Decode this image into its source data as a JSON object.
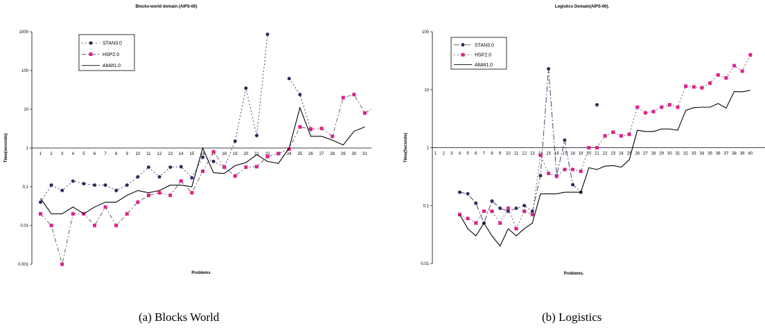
{
  "captions": [
    "(a) Blocks World",
    "(b) Logistics"
  ],
  "chart_data": [
    {
      "type": "line",
      "title": "Blocks-world domain (AIPS-00)",
      "xlabel": "Problems",
      "ylabel": "Time(seconds)",
      "yscale": "log",
      "ylim": [
        0.001,
        1000
      ],
      "yticks": [
        "0.001",
        "0.01",
        "0.1",
        "1",
        "10",
        "100",
        "1000"
      ],
      "categories": [
        1,
        2,
        3,
        4,
        5,
        6,
        7,
        8,
        9,
        10,
        11,
        12,
        13,
        14,
        15,
        16,
        17,
        18,
        19,
        20,
        21,
        22,
        23,
        24,
        25,
        26,
        27,
        28,
        29,
        30,
        31,
        32,
        33
      ],
      "legend_position": "top-left",
      "series": [
        {
          "name": "STAN3.0",
          "color": "#2b2b5e",
          "marker": "circle",
          "dash": "2 3",
          "values": [
            0.04,
            0.11,
            0.08,
            0.14,
            0.12,
            0.11,
            0.11,
            0.08,
            0.11,
            0.18,
            0.32,
            0.18,
            0.32,
            0.33,
            0.17,
            0.58,
            0.45,
            0.32,
            1.5,
            35,
            2.1,
            860,
            null,
            62,
            24,
            3.0,
            null,
            null,
            null,
            null,
            null,
            null,
            null
          ]
        },
        {
          "name": "HSP2.0",
          "color": "#e0218a",
          "marker": "square",
          "dash": "6 3 2 3",
          "values": [
            0.02,
            0.01,
            0.001,
            0.02,
            0.02,
            0.01,
            0.03,
            0.01,
            0.02,
            0.04,
            0.06,
            0.07,
            0.06,
            0.14,
            0.07,
            0.25,
            0.8,
            0.32,
            0.19,
            0.32,
            0.33,
            0.6,
            0.72,
            0.94,
            3.5,
            3.1,
            3.2,
            2.0,
            20,
            24,
            8.0,
            11.5,
            5.2
          ]
        },
        {
          "name": "AltAlt1.0",
          "color": "#000000",
          "marker": "none",
          "dash": "",
          "values": [
            0.05,
            0.02,
            0.02,
            0.03,
            0.02,
            0.03,
            0.04,
            0.04,
            0.06,
            0.08,
            0.07,
            0.08,
            0.11,
            0.11,
            0.1,
            1.0,
            0.23,
            0.22,
            0.35,
            0.42,
            0.67,
            0.45,
            0.4,
            1.0,
            11,
            2.0,
            2.0,
            1.6,
            1.2,
            2.7,
            3.5,
            null,
            null
          ]
        }
      ]
    },
    {
      "type": "line",
      "title": "Logistics Domain(AIPS-00).",
      "xlabel": "Problems.",
      "ylabel": "Time(Seconds)",
      "yscale": "log",
      "ylim": [
        0.01,
        100
      ],
      "yticks": [
        "0.01",
        "0.1",
        "1",
        "10",
        "100"
      ],
      "categories": [
        1,
        2,
        3,
        4,
        5,
        6,
        7,
        8,
        9,
        10,
        11,
        12,
        13,
        14,
        15,
        16,
        17,
        18,
        19,
        20,
        21,
        22,
        23,
        24,
        25,
        26,
        27,
        28,
        29,
        30,
        31,
        32,
        33,
        34,
        35,
        36,
        37,
        38,
        39,
        40
      ],
      "legend_position": "top-left",
      "series": [
        {
          "name": "STAN3.0",
          "color": "#2b2b5e",
          "marker": "circle",
          "dash": "8 3 2 3",
          "values": [
            null,
            null,
            null,
            0.17,
            0.16,
            0.11,
            0.05,
            0.12,
            0.09,
            0.08,
            0.09,
            0.1,
            0.08,
            0.33,
            23,
            0.33,
            1.35,
            0.23,
            0.17,
            null,
            5.5,
            null,
            null,
            null,
            null,
            null,
            null,
            null,
            null,
            null,
            null,
            null,
            null,
            null,
            null,
            null,
            null,
            null,
            null,
            null
          ]
        },
        {
          "name": "HSP2.0",
          "color": "#e0218a",
          "marker": "square",
          "dash": "2 3",
          "values": [
            null,
            null,
            null,
            0.07,
            0.06,
            0.05,
            0.08,
            0.08,
            0.05,
            0.09,
            0.04,
            0.08,
            0.07,
            0.74,
            0.36,
            0.32,
            0.42,
            0.42,
            0.39,
            1.0,
            1.0,
            1.6,
            1.85,
            1.6,
            1.7,
            5.0,
            4.0,
            4.2,
            5.0,
            5.5,
            5.0,
            11.5,
            11.2,
            10.8,
            13,
            18,
            16,
            26,
            21,
            40
          ]
        },
        {
          "name": "AltAlt1.0",
          "color": "#000000",
          "marker": "none",
          "dash": "",
          "values": [
            null,
            null,
            null,
            0.07,
            0.04,
            0.03,
            0.05,
            0.03,
            0.02,
            0.04,
            0.03,
            0.04,
            0.05,
            0.16,
            0.16,
            0.16,
            0.17,
            0.17,
            0.17,
            0.45,
            0.42,
            0.48,
            0.49,
            0.46,
            0.62,
            2.0,
            1.9,
            1.9,
            2.1,
            2.1,
            2.0,
            4.4,
            4.9,
            5.0,
            5.0,
            5.8,
            4.8,
            9.3,
            9.2,
            9.8
          ]
        }
      ]
    }
  ]
}
